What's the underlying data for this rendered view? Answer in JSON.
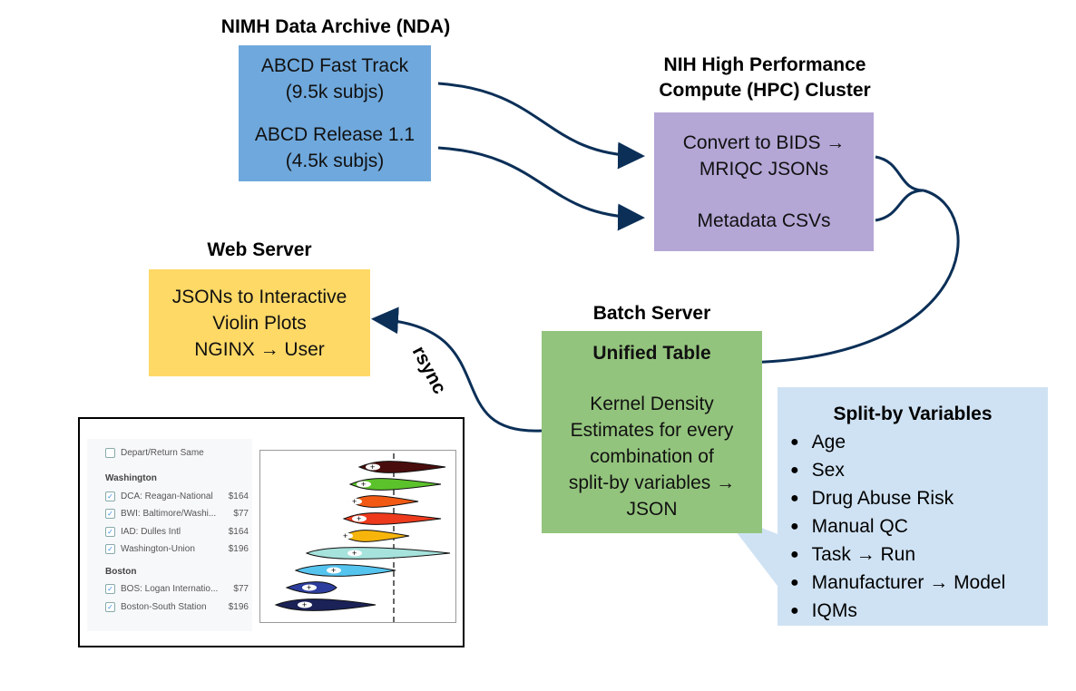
{
  "nda": {
    "title": "NIMH Data Archive (NDA)",
    "items": [
      "ABCD Fast Track",
      "(9.5k subjs)",
      "ABCD Release 1.1",
      "(4.5k subjs)"
    ],
    "color": "#6fa8dc"
  },
  "hpc": {
    "title_line1": "NIH High Performance",
    "title_line2": "Compute (HPC) Cluster",
    "items": [
      "Convert to BIDS →",
      "MRIQC JSONs",
      "Metadata CSVs"
    ],
    "color": "#b4a7d6"
  },
  "web": {
    "title": "Web Server",
    "items": [
      "JSONs to Interactive",
      "Violin Plots",
      "NGINX → User"
    ],
    "color": "#ffd966"
  },
  "batch": {
    "title": "Batch Server",
    "heading": "Unified Table",
    "items": [
      "Kernel Density",
      "Estimates for every",
      "combination of",
      "split-by variables →",
      "JSON"
    ],
    "color": "#93c47d"
  },
  "split": {
    "title": "Split-by Variables",
    "items": [
      "Age",
      "Sex",
      "Drug Abuse Risk",
      "Manual QC",
      "Task → Run",
      "Manufacturer → Model",
      "IQMs"
    ],
    "color": "#cfe2f3"
  },
  "rsync_label": "rsync",
  "arrow_color": "#0b2f57",
  "inset": {
    "depart_return": "Depart/Return Same",
    "groups": [
      {
        "name": "Washington",
        "items": [
          {
            "label": "DCA: Reagan-National",
            "price": "$164"
          },
          {
            "label": "BWI: Baltimore/Washi...",
            "price": "$77"
          },
          {
            "label": "IAD: Dulles Intl",
            "price": "$164"
          },
          {
            "label": "Washington-Union",
            "price": "$196"
          }
        ]
      },
      {
        "name": "Boston",
        "items": [
          {
            "label": "BOS: Logan Internatio...",
            "price": "$77"
          },
          {
            "label": "Boston-South Station",
            "price": "$196"
          }
        ]
      }
    ],
    "violin_colors": [
      "#4a0d0d",
      "#5cc22b",
      "#f25a14",
      "#ee3a1c",
      "#f7b50c",
      "#a6e3dc",
      "#55c4ef",
      "#2d3d9e",
      "#1a2257"
    ]
  }
}
